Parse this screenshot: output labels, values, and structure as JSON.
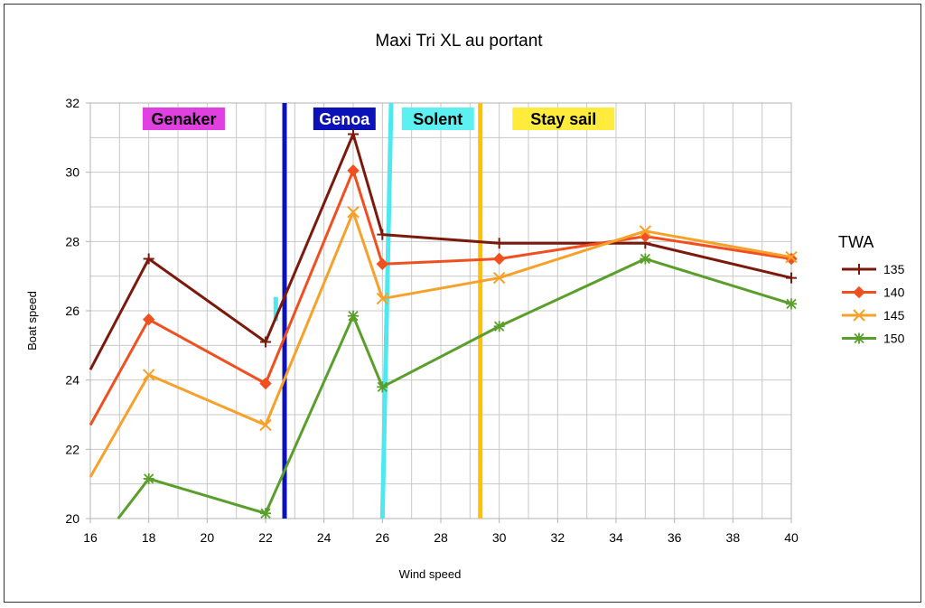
{
  "chart_data": {
    "type": "line",
    "title": "Maxi Tri XL au portant",
    "xlabel": "Wind speed",
    "ylabel": "Boat speed",
    "xlim": [
      16,
      40
    ],
    "ylim": [
      20,
      32
    ],
    "x_ticks": [
      "16",
      "18",
      "20",
      "22",
      "24",
      "26",
      "28",
      "30",
      "32",
      "34",
      "36",
      "38",
      "40"
    ],
    "y_ticks": [
      "20",
      "22",
      "24",
      "26",
      "28",
      "30",
      "32"
    ],
    "grid": true,
    "legend": {
      "title": "TWA",
      "position": "right"
    },
    "series": [
      {
        "name": "135",
        "color": "#7b1a0c",
        "marker": "plus",
        "points": [
          [
            16,
            24.3
          ],
          [
            18,
            27.5
          ],
          [
            22,
            25.1
          ],
          [
            25,
            31.1
          ],
          [
            26,
            28.2
          ],
          [
            30,
            27.95
          ],
          [
            35,
            27.95
          ],
          [
            40,
            26.95
          ]
        ]
      },
      {
        "name": "140",
        "color": "#f0501f",
        "marker": "diamond",
        "points": [
          [
            16,
            22.7
          ],
          [
            18,
            25.75
          ],
          [
            22,
            23.9
          ],
          [
            25,
            30.05
          ],
          [
            26,
            27.35
          ],
          [
            30,
            27.5
          ],
          [
            35,
            28.15
          ],
          [
            40,
            27.5
          ]
        ]
      },
      {
        "name": "145",
        "color": "#f7a12a",
        "marker": "x",
        "points": [
          [
            16,
            21.2
          ],
          [
            18,
            24.15
          ],
          [
            22,
            22.7
          ],
          [
            25,
            28.85
          ],
          [
            26,
            26.35
          ],
          [
            30,
            26.95
          ],
          [
            35,
            28.3
          ],
          [
            40,
            27.55
          ]
        ]
      },
      {
        "name": "150",
        "color": "#5a9e2b",
        "marker": "asterisk",
        "points": [
          [
            16.95,
            20
          ],
          [
            18,
            21.15
          ],
          [
            22,
            20.15
          ],
          [
            25,
            25.85
          ],
          [
            26,
            23.8
          ],
          [
            30,
            25.55
          ],
          [
            35,
            27.5
          ],
          [
            40,
            26.2
          ]
        ]
      }
    ],
    "annotations": [
      {
        "label": "Genaker",
        "x": 19.2,
        "bg": "#e040e0",
        "fg": "#000000"
      },
      {
        "label": "Genoa",
        "x": 24.7,
        "bg": "#0d12b8",
        "fg": "#ffffff"
      },
      {
        "label": "Solent",
        "x": 27.9,
        "bg": "#5cf0f0",
        "fg": "#000000"
      },
      {
        "label": "Stay sail",
        "x": 32.2,
        "bg": "#ffeb3b",
        "fg": "#000000"
      }
    ],
    "vlines": [
      {
        "x": 22.65,
        "color": "#0d12b8"
      },
      {
        "x": 29.35,
        "color": "#ffc107"
      }
    ],
    "slanted_lines": [
      {
        "x1": 26.0,
        "y1": 20,
        "x2": 26.3,
        "y2": 32,
        "color": "#4ee8f0"
      },
      {
        "x1": 22.35,
        "y1": 25.7,
        "x2": 22.35,
        "y2": 26.4,
        "color": "#4ee8f0"
      }
    ]
  }
}
